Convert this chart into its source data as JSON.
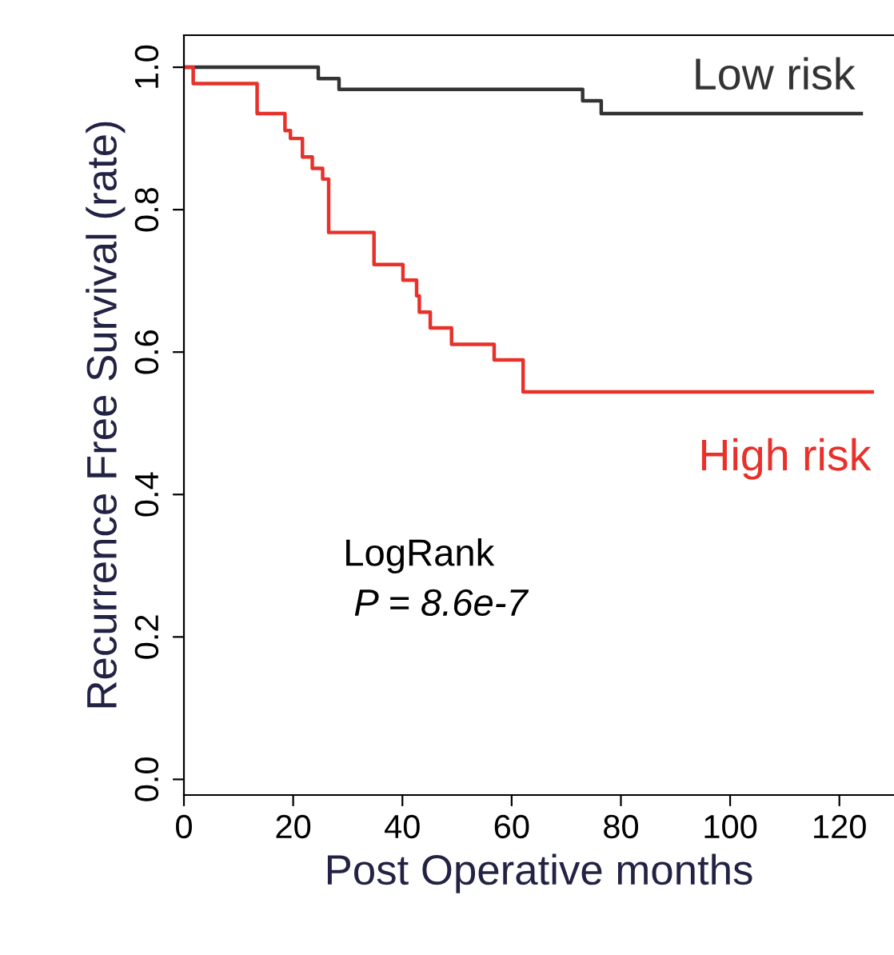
{
  "chart_data": {
    "type": "step",
    "xlabel": "Post Operative months",
    "ylabel": "Recurrence Free Survival (rate)",
    "xlim": [
      0,
      130
    ],
    "ylim": [
      -0.022,
      1.045
    ],
    "xticks": [
      0,
      20,
      40,
      60,
      80,
      100,
      120
    ],
    "yticks": [
      {
        "value": 0,
        "label": "0.0"
      },
      {
        "value": 0.2,
        "label": "0.2"
      },
      {
        "value": 0.4,
        "label": "0.4"
      },
      {
        "value": 0.6,
        "label": "0.6"
      },
      {
        "value": 0.8,
        "label": "0.8"
      },
      {
        "value": 1,
        "label": "1.0"
      }
    ],
    "grid": false,
    "legend": false,
    "marker": "none",
    "line_style": "solid",
    "series": [
      {
        "name": "Low risk",
        "color": "#333333",
        "x": [
          0,
          24.6,
          28.4,
          73,
          76.4,
          124
        ],
        "values": [
          1.0,
          0.984,
          0.969,
          0.953,
          0.935,
          0.935
        ]
      },
      {
        "name": "High risk",
        "color": "#e8312a",
        "x": [
          0,
          1.7,
          13.4,
          18.5,
          19.5,
          21.7,
          23.5,
          25.4,
          26.5,
          34.8,
          40.1,
          42.6,
          43.1,
          45.1,
          49,
          56.8,
          62.1,
          126
        ],
        "values": [
          1.0,
          0.977,
          0.935,
          0.911,
          0.9,
          0.874,
          0.858,
          0.843,
          0.768,
          0.723,
          0.701,
          0.679,
          0.656,
          0.634,
          0.611,
          0.589,
          0.544,
          0.544
        ]
      }
    ],
    "annotations": [
      "LogRank",
      "P = 8.6e-7"
    ]
  }
}
